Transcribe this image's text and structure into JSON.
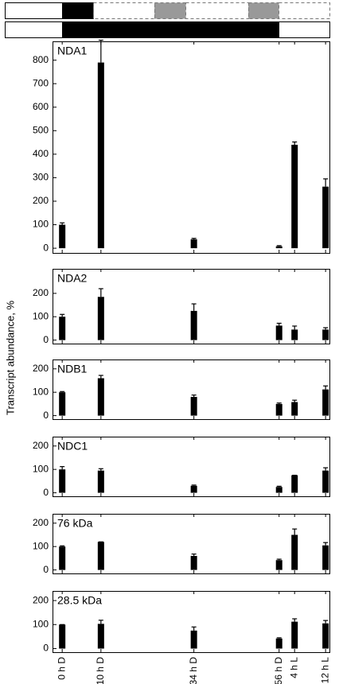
{
  "chart_data": [
    {
      "type": "bar",
      "title": "NDA1",
      "ylabel": "Transcript abundance, %",
      "color": "#000000",
      "x": [
        0,
        10,
        34,
        56,
        60,
        68
      ],
      "xlim": [
        -2.5,
        69
      ],
      "values": [
        100,
        790,
        38,
        8,
        440,
        262
      ],
      "errors": [
        8,
        95,
        4,
        3,
        12,
        33
      ],
      "ylim": [
        -20,
        880
      ],
      "yticks": [
        0,
        100,
        200,
        300,
        400,
        500,
        600,
        700,
        800
      ]
    },
    {
      "type": "bar",
      "title": "NDA2",
      "color": "#000000",
      "x": [
        0,
        10,
        34,
        56,
        60,
        68
      ],
      "xlim": [
        -2.5,
        69
      ],
      "values": [
        100,
        185,
        125,
        62,
        45,
        45
      ],
      "errors": [
        10,
        35,
        30,
        10,
        15,
        8
      ],
      "ylim": [
        -15,
        305
      ],
      "yticks": [
        0,
        100,
        200
      ]
    },
    {
      "type": "bar",
      "title": "NDB1",
      "color": "#000000",
      "x": [
        0,
        10,
        34,
        56,
        60,
        68
      ],
      "xlim": [
        -2.5,
        69
      ],
      "values": [
        100,
        160,
        80,
        50,
        58,
        112
      ],
      "errors": [
        3,
        12,
        8,
        4,
        8,
        15
      ],
      "ylim": [
        -15,
        240
      ],
      "yticks": [
        0,
        100,
        200
      ]
    },
    {
      "type": "bar",
      "title": "NDC1",
      "color": "#000000",
      "x": [
        0,
        10,
        34,
        56,
        60,
        68
      ],
      "xlim": [
        -2.5,
        69
      ],
      "values": [
        100,
        95,
        30,
        25,
        75,
        95
      ],
      "errors": [
        12,
        8,
        3,
        3,
        0,
        12
      ],
      "ylim": [
        -15,
        240
      ],
      "yticks": [
        0,
        100,
        200
      ]
    },
    {
      "type": "bar",
      "title": "76 kDa",
      "color": "#000000",
      "x": [
        0,
        10,
        34,
        56,
        60,
        68
      ],
      "xlim": [
        -2.5,
        69
      ],
      "values": [
        100,
        120,
        60,
        42,
        150,
        105
      ],
      "errors": [
        3,
        0,
        8,
        4,
        25,
        12
      ],
      "ylim": [
        -15,
        240
      ],
      "yticks": [
        0,
        100,
        200
      ]
    },
    {
      "type": "bar",
      "title": "28.5 kDa",
      "color": "#000000",
      "x": [
        0,
        10,
        34,
        56,
        60,
        68
      ],
      "xlim": [
        -2.5,
        69
      ],
      "categories": [
        "0 h D",
        "10 h D",
        "34 h D",
        "56 h D",
        "4 h L",
        "12 h L"
      ],
      "values": [
        100,
        103,
        75,
        42,
        112,
        105
      ],
      "errors": [
        0,
        15,
        15,
        3,
        12,
        12
      ],
      "ylim": [
        -15,
        240
      ],
      "yticks": [
        0,
        100,
        200
      ]
    }
  ]
}
